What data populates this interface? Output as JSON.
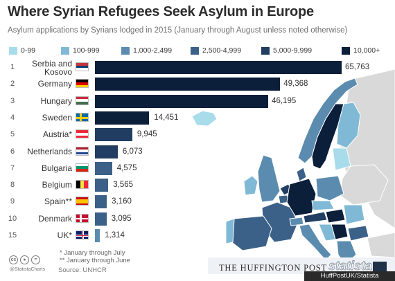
{
  "header": {
    "title": "Where Syrian Refugees Seek Asylum in Europe",
    "subtitle": "Asylum applications by Syrians lodged in 2015 (January through August unless noted otherwise)"
  },
  "legend": [
    {
      "label": "0-99",
      "color": "#a8dcea"
    },
    {
      "label": "100-999",
      "color": "#7fb9d5"
    },
    {
      "label": "1,000-2,499",
      "color": "#5b8cb0"
    },
    {
      "label": "2,500-4,999",
      "color": "#3c6188"
    },
    {
      "label": "5,000-9,999",
      "color": "#213e62"
    },
    {
      "label": "10,000+",
      "color": "#0b1e3a"
    }
  ],
  "chart_data": {
    "type": "bar",
    "orientation": "horizontal",
    "title": "Where Syrian Refugees Seek Asylum in Europe",
    "subtitle": "Asylum applications by Syrians lodged in 2015 (January through August unless noted otherwise)",
    "ranks": [
      "1",
      "2",
      "3",
      "4",
      "5",
      "6",
      "7",
      "8",
      "9",
      "10",
      "15"
    ],
    "categories": [
      "Serbia and Kosovo",
      "Germany",
      "Hungary",
      "Sweden",
      "Austria*",
      "Netherlands",
      "Bulgaria",
      "Belgium",
      "Spain**",
      "Denmark",
      "UK*"
    ],
    "values": [
      65763,
      49368,
      46195,
      14451,
      9945,
      6073,
      4575,
      3565,
      3160,
      3095,
      1314
    ],
    "value_labels": [
      "65,763",
      "49,368",
      "46,195",
      "14,451",
      "9,945",
      "6,073",
      "4,575",
      "3,565",
      "3,160",
      "3,095",
      "1,314"
    ],
    "bar_colors": [
      "#0b1e3a",
      "#0b1e3a",
      "#0b1e3a",
      "#0b1e3a",
      "#213e62",
      "#213e62",
      "#3c6188",
      "#3c6188",
      "#3c6188",
      "#3c6188",
      "#5b8cb0"
    ],
    "flags": [
      "serbia",
      "germany",
      "hungary",
      "sweden",
      "austria",
      "netherlands",
      "bulgaria",
      "belgium",
      "spain",
      "denmark",
      "uk"
    ],
    "xlim": [
      0,
      65763
    ],
    "grid": false,
    "legend_position": "top"
  },
  "footnotes": [
    "* January through July",
    "** January through June"
  ],
  "source": "Source: UNHCR",
  "handle": "@StatistaCharts",
  "cc_icons": [
    "cc",
    "by",
    "nd"
  ],
  "brand": {
    "huffpost": "THE HUFFINGTON POST",
    "statista": "statista",
    "credit": "HuffPostUK/Statista"
  }
}
